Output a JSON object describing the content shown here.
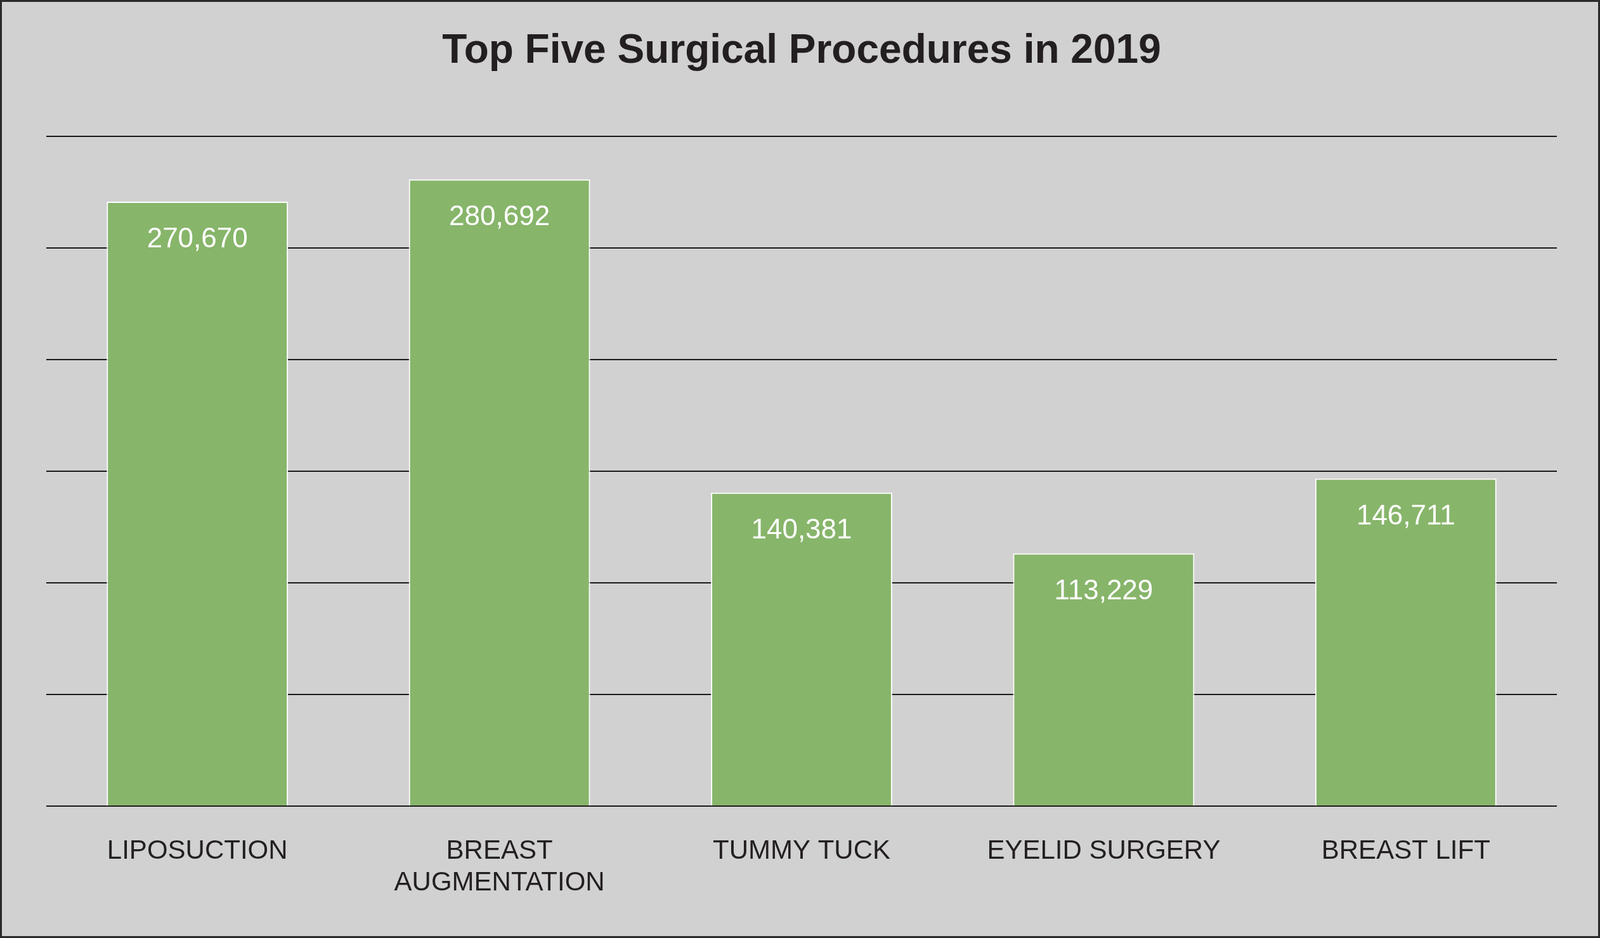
{
  "chart_data": {
    "type": "bar",
    "title": "Top Five Surgical Procedures in 2019",
    "categories": [
      "LIPOSUCTION",
      "BREAST AUGMENTATION",
      "TUMMY TUCK",
      "EYELID SURGERY",
      "BREAST LIFT"
    ],
    "values": [
      270670,
      280692,
      140381,
      113229,
      146711
    ],
    "value_labels": [
      "270,670",
      "280,692",
      "140,381",
      "113,229",
      "146,711"
    ],
    "color": "#87b56a",
    "ylim": [
      0,
      300000
    ],
    "yticks": [
      0,
      50000,
      100000,
      150000,
      200000,
      250000,
      300000
    ],
    "grid": true,
    "data_labels": true,
    "tick_labels": "x"
  }
}
